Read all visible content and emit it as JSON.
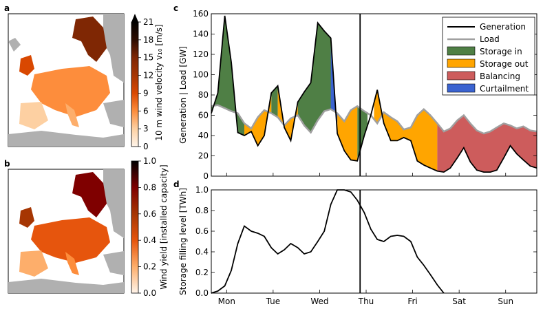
{
  "panel_letters": [
    "a",
    "b",
    "c",
    "d"
  ],
  "colors": {
    "generation": "#000000",
    "load": "#a0a0a0",
    "storage_in": "#4f7f45",
    "storage_out": "#ffa500",
    "balancing": "#cd5c5c",
    "curtailment": "#3a63d0",
    "land_gray": "#b0b0b0"
  },
  "chart_data": [
    {
      "id": "a",
      "type": "heatmap",
      "title": "",
      "colorbar_label": "10 m wind velocity v₁₀ [m/s]",
      "colorbar_ticks": [
        "0",
        "3",
        "6",
        "9",
        "12",
        "15",
        "18",
        "21"
      ],
      "colorbar_range": [
        0,
        21
      ],
      "colormap_stops": [
        "#fff5eb",
        "#fdd0a2",
        "#fd8d3c",
        "#d94801",
        "#a63603",
        "#7f2704",
        "#2d0c00",
        "#000000"
      ]
    },
    {
      "id": "b",
      "type": "heatmap",
      "title": "",
      "colorbar_label": "Wind yield [installed capacity]",
      "colorbar_ticks": [
        "0.0",
        "0.2",
        "0.4",
        "0.6",
        "0.8",
        "1.0"
      ],
      "colorbar_range": [
        0,
        1
      ],
      "colormap_stops": [
        "#fff5eb",
        "#fdae6b",
        "#e6550d",
        "#a63603",
        "#7f0000",
        "#000000"
      ]
    },
    {
      "id": "c",
      "type": "area",
      "ylabel": "Generation | Load [GW]",
      "ylim": [
        0,
        160
      ],
      "yticks": [
        0,
        20,
        40,
        60,
        80,
        100,
        120,
        140,
        160
      ],
      "xlim": [
        0,
        7
      ],
      "legend_position": "top-right",
      "legend": [
        "Generation",
        "Load",
        "Storage in",
        "Storage out",
        "Balancing",
        "Curtailment"
      ],
      "vline_x": 3.2,
      "x": [
        0.0,
        0.14,
        0.29,
        0.43,
        0.57,
        0.71,
        0.86,
        1.0,
        1.14,
        1.29,
        1.43,
        1.57,
        1.71,
        1.86,
        2.0,
        2.14,
        2.29,
        2.43,
        2.57,
        2.71,
        2.86,
        3.0,
        3.14,
        3.29,
        3.43,
        3.57,
        3.71,
        3.86,
        4.0,
        4.14,
        4.29,
        4.43,
        4.57,
        4.71,
        4.86,
        5.0,
        5.14,
        5.29,
        5.43,
        5.57,
        5.71,
        5.86,
        6.0,
        6.14,
        6.29,
        6.43,
        6.57,
        6.71,
        6.86,
        7.0
      ],
      "generation": [
        62,
        82,
        158,
        112,
        43,
        40,
        44,
        30,
        40,
        82,
        89,
        48,
        35,
        73,
        83,
        92,
        151,
        143,
        136,
        42,
        25,
        16,
        15,
        40,
        60,
        85,
        52,
        35,
        35,
        38,
        35,
        15,
        11,
        8,
        5,
        4,
        8,
        18,
        28,
        14,
        6,
        4,
        4,
        6,
        18,
        30,
        22,
        16,
        10,
        8
      ],
      "load": [
        69,
        70,
        67,
        64,
        62,
        52,
        47,
        58,
        65,
        62,
        58,
        50,
        57,
        60,
        50,
        43,
        55,
        64,
        66,
        62,
        54,
        65,
        69,
        64,
        60,
        52,
        63,
        58,
        54,
        46,
        48,
        60,
        66,
        60,
        52,
        44,
        47,
        55,
        60,
        52,
        45,
        42,
        44,
        48,
        52,
        50,
        47,
        49,
        45,
        44
      ],
      "storage_in_intervals": [
        [
          0.0,
          0.71
        ],
        [
          1.29,
          1.43
        ],
        [
          1.86,
          2.71
        ],
        [
          3.14,
          3.36
        ]
      ],
      "storage_out_intervals": [
        [
          0.71,
          1.29
        ],
        [
          1.43,
          1.86
        ],
        [
          2.71,
          3.14
        ],
        [
          3.5,
          4.86
        ]
      ],
      "curtailment_intervals": [
        [
          2.57,
          2.71
        ]
      ],
      "balancing_intervals": [
        [
          4.86,
          7.0
        ]
      ]
    },
    {
      "id": "d",
      "type": "line",
      "ylabel": "Storage filling level [TWh]",
      "ylim": [
        0,
        1.0
      ],
      "yticks": [
        0.0,
        0.2,
        0.4,
        0.6,
        0.8,
        1.0
      ],
      "xlim": [
        0,
        7
      ],
      "xtick_labels": [
        "Mon",
        "Tue",
        "Wed",
        "Thu",
        "Fri",
        "Sat",
        "Sun"
      ],
      "vline_x": 3.2,
      "x": [
        0.0,
        0.14,
        0.29,
        0.43,
        0.57,
        0.71,
        0.86,
        1.0,
        1.14,
        1.29,
        1.43,
        1.57,
        1.71,
        1.86,
        2.0,
        2.14,
        2.29,
        2.43,
        2.57,
        2.71,
        2.86,
        3.0,
        3.14,
        3.29,
        3.43,
        3.57,
        3.71,
        3.86,
        4.0,
        4.14,
        4.29,
        4.43,
        4.57,
        4.71,
        4.86,
        5.0
      ],
      "values": [
        0.0,
        0.02,
        0.07,
        0.22,
        0.48,
        0.65,
        0.6,
        0.58,
        0.55,
        0.44,
        0.38,
        0.42,
        0.48,
        0.44,
        0.38,
        0.4,
        0.5,
        0.6,
        0.86,
        1.0,
        1.0,
        0.98,
        0.9,
        0.78,
        0.62,
        0.52,
        0.5,
        0.55,
        0.56,
        0.55,
        0.5,
        0.35,
        0.27,
        0.18,
        0.08,
        0.0
      ]
    }
  ]
}
